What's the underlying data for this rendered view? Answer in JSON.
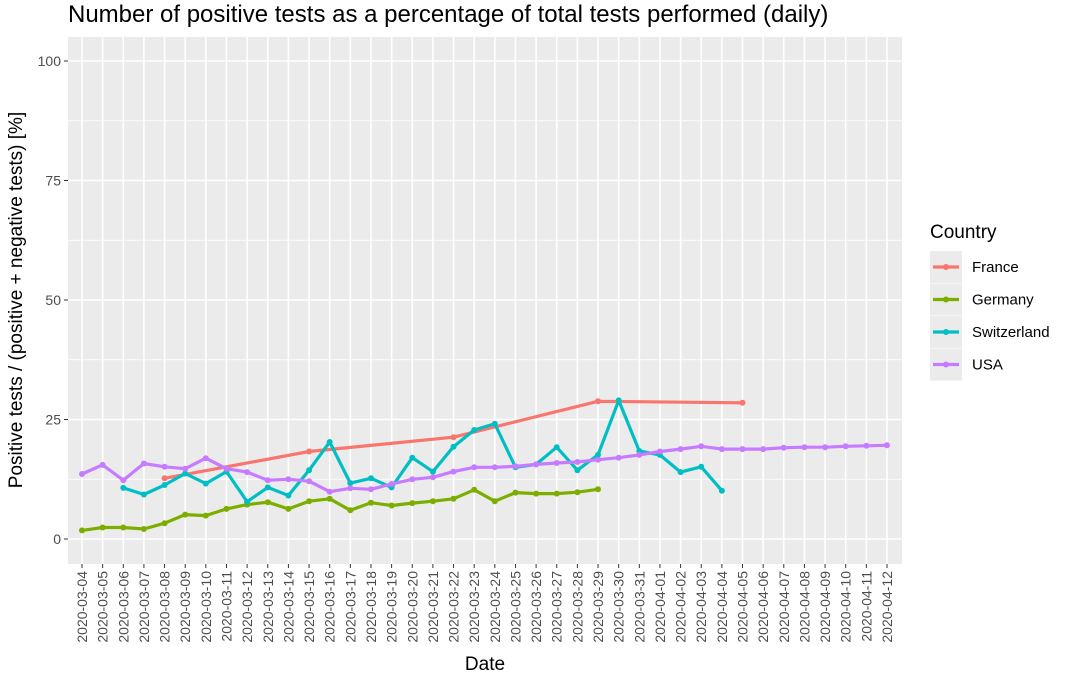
{
  "chart_data": {
    "type": "line",
    "title": "Number of positive tests as a percentage of total tests performed (daily)",
    "xlabel": "Date",
    "ylabel": "Positive tests / (positive + negative tests) [%]",
    "ylim": [
      0,
      100
    ],
    "yticks": [
      0,
      25,
      50,
      75,
      100
    ],
    "grid": true,
    "legend_position": "right",
    "legend_title": "Country",
    "categories": [
      "2020-03-04",
      "2020-03-05",
      "2020-03-06",
      "2020-03-07",
      "2020-03-08",
      "2020-03-09",
      "2020-03-10",
      "2020-03-11",
      "2020-03-12",
      "2020-03-13",
      "2020-03-14",
      "2020-03-15",
      "2020-03-16",
      "2020-03-17",
      "2020-03-18",
      "2020-03-19",
      "2020-03-20",
      "2020-03-21",
      "2020-03-22",
      "2020-03-23",
      "2020-03-24",
      "2020-03-25",
      "2020-03-26",
      "2020-03-27",
      "2020-03-28",
      "2020-03-29",
      "2020-03-30",
      "2020-03-31",
      "2020-04-01",
      "2020-04-02",
      "2020-04-03",
      "2020-04-04",
      "2020-04-05",
      "2020-04-06",
      "2020-04-07",
      "2020-04-08",
      "2020-04-09",
      "2020-04-10",
      "2020-04-11",
      "2020-04-12"
    ],
    "series": [
      {
        "name": "France",
        "color": "#F8766D",
        "points": [
          [
            "2020-03-08",
            12.7
          ],
          [
            "2020-03-15",
            18.3
          ],
          [
            "2020-03-22",
            21.3
          ],
          [
            "2020-03-29",
            28.8
          ],
          [
            "2020-04-05",
            28.5
          ]
        ]
      },
      {
        "name": "Germany",
        "color": "#7CAE00",
        "points": [
          [
            "2020-03-04",
            1.8
          ],
          [
            "2020-03-05",
            2.4
          ],
          [
            "2020-03-06",
            2.4
          ],
          [
            "2020-03-07",
            2.1
          ],
          [
            "2020-03-08",
            3.3
          ],
          [
            "2020-03-09",
            5.1
          ],
          [
            "2020-03-10",
            4.9
          ],
          [
            "2020-03-11",
            6.3
          ],
          [
            "2020-03-12",
            7.2
          ],
          [
            "2020-03-13",
            7.7
          ],
          [
            "2020-03-14",
            6.3
          ],
          [
            "2020-03-15",
            7.9
          ],
          [
            "2020-03-16",
            8.4
          ],
          [
            "2020-03-17",
            6.0
          ],
          [
            "2020-03-18",
            7.6
          ],
          [
            "2020-03-19",
            7.0
          ],
          [
            "2020-03-20",
            7.5
          ],
          [
            "2020-03-21",
            7.9
          ],
          [
            "2020-03-22",
            8.4
          ],
          [
            "2020-03-23",
            10.3
          ],
          [
            "2020-03-24",
            7.9
          ],
          [
            "2020-03-25",
            9.7
          ],
          [
            "2020-03-26",
            9.5
          ],
          [
            "2020-03-27",
            9.5
          ],
          [
            "2020-03-28",
            9.8
          ],
          [
            "2020-03-29",
            10.4
          ]
        ]
      },
      {
        "name": "Switzerland",
        "color": "#00BFC4",
        "points": [
          [
            "2020-03-06",
            10.7
          ],
          [
            "2020-03-07",
            9.3
          ],
          [
            "2020-03-08",
            11.3
          ],
          [
            "2020-03-09",
            13.7
          ],
          [
            "2020-03-10",
            11.6
          ],
          [
            "2020-03-11",
            14.1
          ],
          [
            "2020-03-12",
            7.8
          ],
          [
            "2020-03-13",
            10.8
          ],
          [
            "2020-03-14",
            9.1
          ],
          [
            "2020-03-15",
            14.4
          ],
          [
            "2020-03-16",
            20.3
          ],
          [
            "2020-03-17",
            11.7
          ],
          [
            "2020-03-18",
            12.7
          ],
          [
            "2020-03-19",
            10.8
          ],
          [
            "2020-03-20",
            17.0
          ],
          [
            "2020-03-21",
            14.1
          ],
          [
            "2020-03-22",
            19.3
          ],
          [
            "2020-03-23",
            22.8
          ],
          [
            "2020-03-24",
            24.1
          ],
          [
            "2020-03-25",
            15.0
          ],
          [
            "2020-03-26",
            15.6
          ],
          [
            "2020-03-27",
            19.2
          ],
          [
            "2020-03-28",
            14.4
          ],
          [
            "2020-03-29",
            17.6
          ],
          [
            "2020-03-30",
            29.0
          ],
          [
            "2020-03-31",
            18.4
          ],
          [
            "2020-04-01",
            17.6
          ],
          [
            "2020-04-02",
            14.0
          ],
          [
            "2020-04-03",
            15.1
          ],
          [
            "2020-04-04",
            10.1
          ]
        ]
      },
      {
        "name": "USA",
        "color": "#C77CFF",
        "points": [
          [
            "2020-03-04",
            13.6
          ],
          [
            "2020-03-05",
            15.5
          ],
          [
            "2020-03-06",
            12.3
          ],
          [
            "2020-03-07",
            15.8
          ],
          [
            "2020-03-08",
            15.1
          ],
          [
            "2020-03-09",
            14.7
          ],
          [
            "2020-03-10",
            16.9
          ],
          [
            "2020-03-11",
            14.7
          ],
          [
            "2020-03-12",
            14.0
          ],
          [
            "2020-03-13",
            12.3
          ],
          [
            "2020-03-14",
            12.5
          ],
          [
            "2020-03-15",
            12.1
          ],
          [
            "2020-03-16",
            9.9
          ],
          [
            "2020-03-17",
            10.6
          ],
          [
            "2020-03-18",
            10.4
          ],
          [
            "2020-03-19",
            11.5
          ],
          [
            "2020-03-20",
            12.5
          ],
          [
            "2020-03-21",
            12.9
          ],
          [
            "2020-03-22",
            14.1
          ],
          [
            "2020-03-23",
            15.0
          ],
          [
            "2020-03-24",
            15.0
          ],
          [
            "2020-03-25",
            15.2
          ],
          [
            "2020-03-26",
            15.6
          ],
          [
            "2020-03-27",
            15.9
          ],
          [
            "2020-03-28",
            16.1
          ],
          [
            "2020-03-29",
            16.6
          ],
          [
            "2020-03-30",
            17.0
          ],
          [
            "2020-03-31",
            17.6
          ],
          [
            "2020-04-01",
            18.3
          ],
          [
            "2020-04-02",
            18.8
          ],
          [
            "2020-04-03",
            19.4
          ],
          [
            "2020-04-04",
            18.8
          ],
          [
            "2020-04-05",
            18.8
          ],
          [
            "2020-04-06",
            18.8
          ],
          [
            "2020-04-07",
            19.1
          ],
          [
            "2020-04-08",
            19.2
          ],
          [
            "2020-04-09",
            19.2
          ],
          [
            "2020-04-10",
            19.4
          ],
          [
            "2020-04-11",
            19.5
          ],
          [
            "2020-04-12",
            19.6
          ]
        ]
      }
    ]
  }
}
